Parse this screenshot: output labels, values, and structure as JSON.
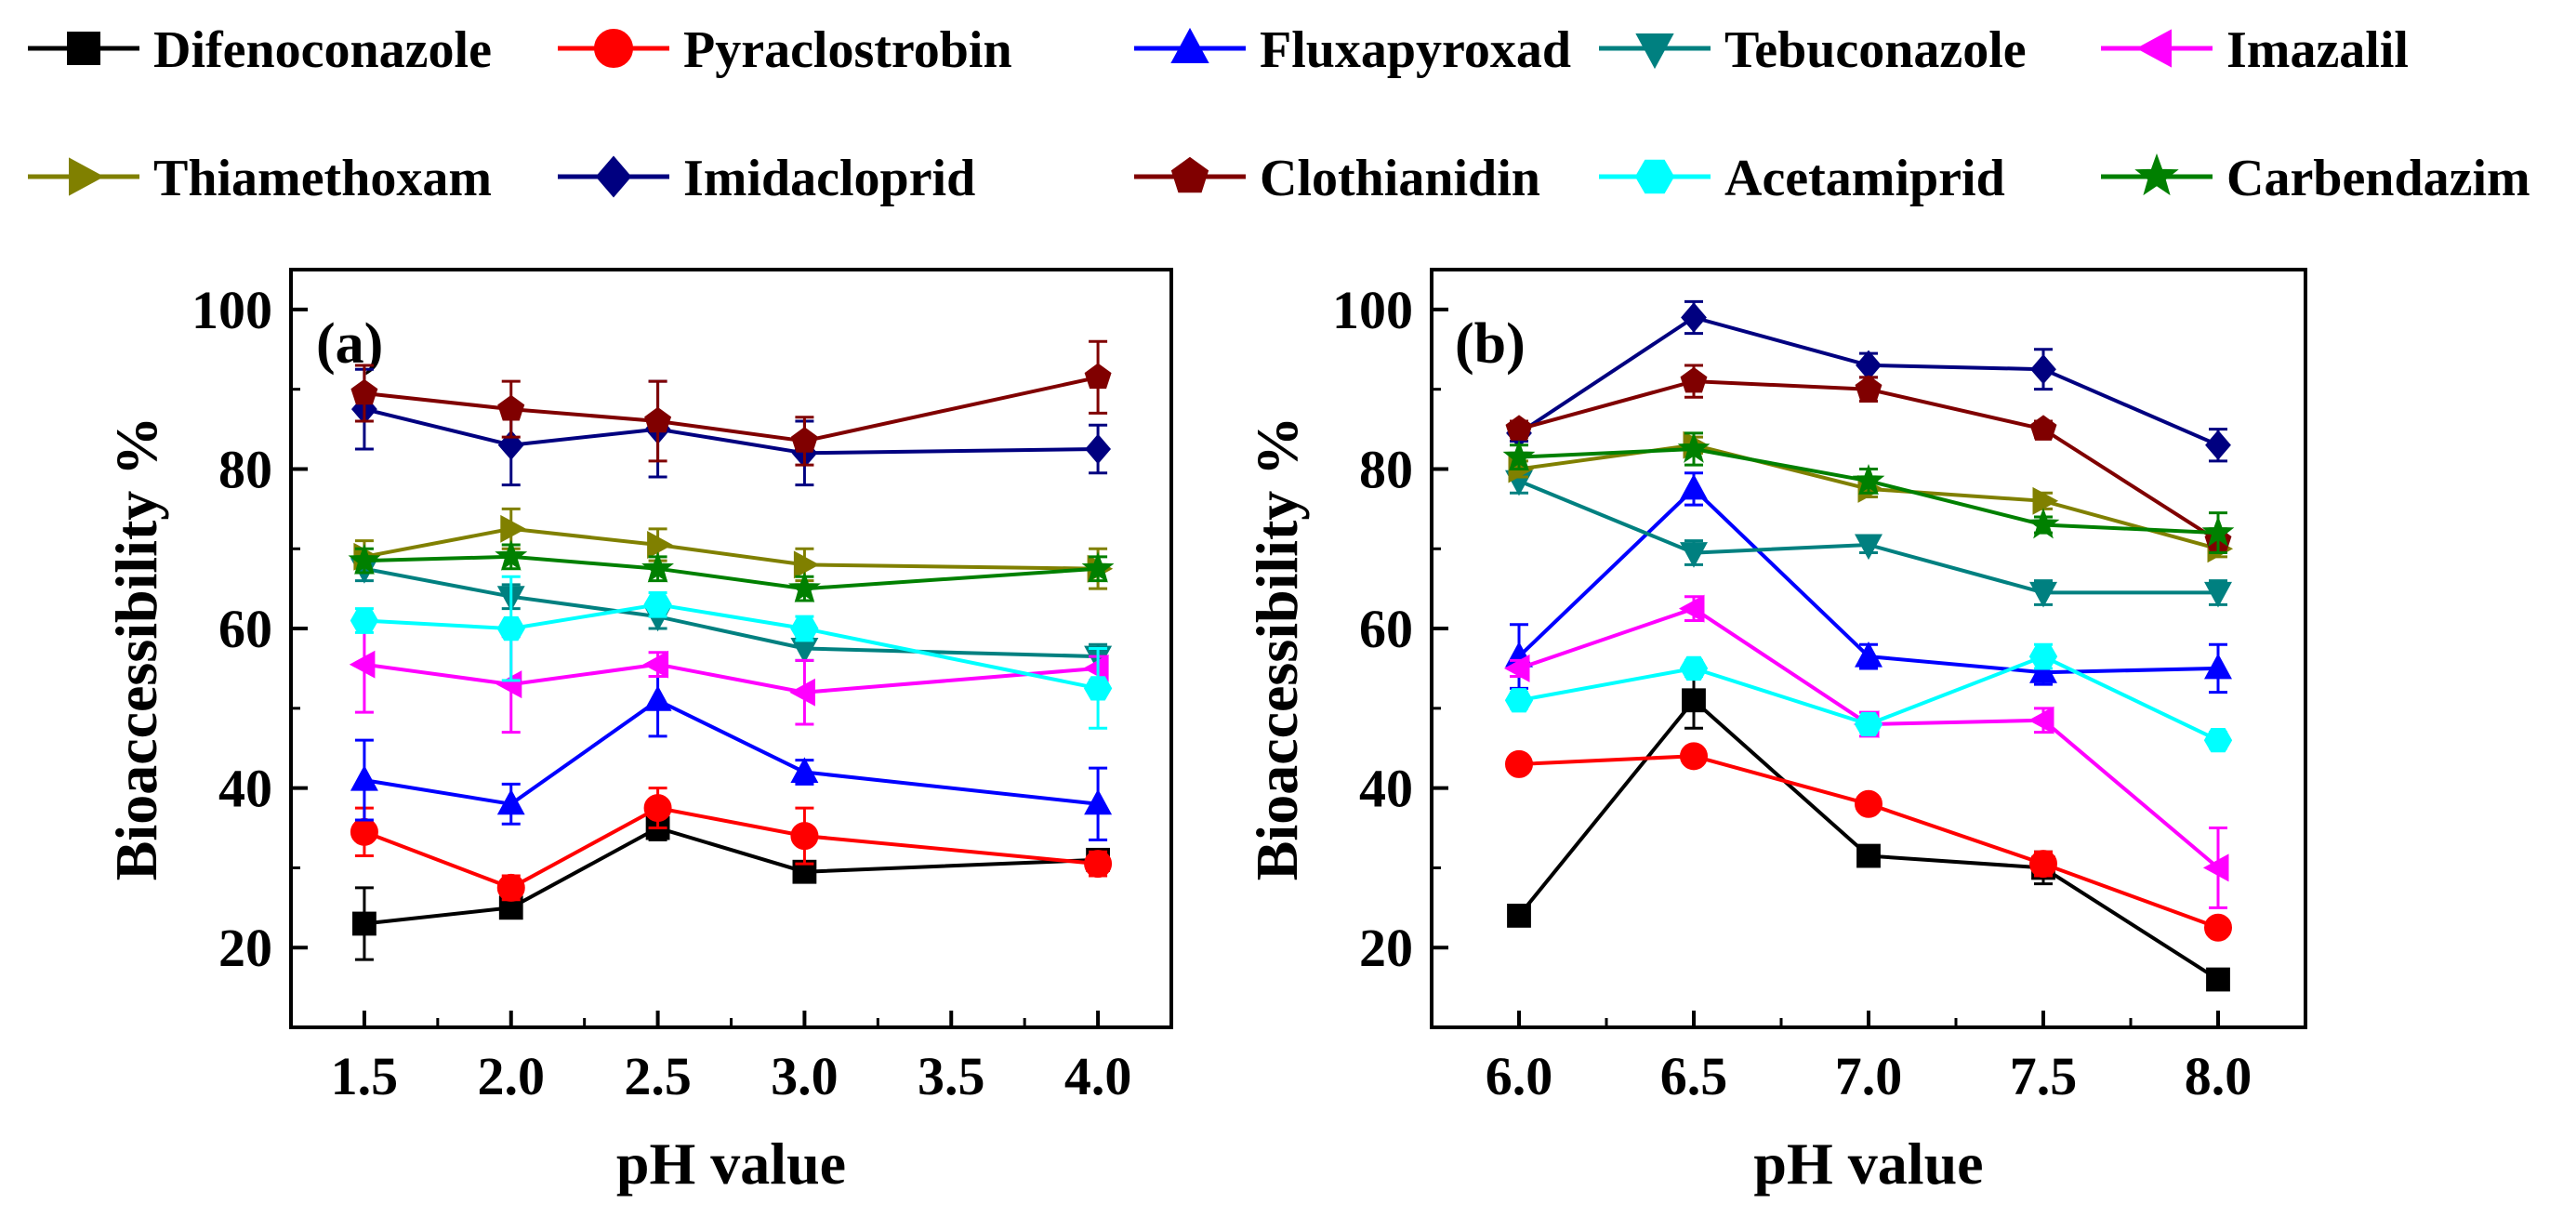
{
  "chart_data": [
    {
      "type": "line",
      "panel_label": "(a)",
      "title": "",
      "xlabel": "pH value",
      "ylabel": "Bioaccessibility %",
      "xlim": [
        1.25,
        4.25
      ],
      "ylim": [
        10,
        105
      ],
      "xticks": [
        "1.5",
        "2.0",
        "2.5",
        "3.0",
        "3.5",
        "4.0"
      ],
      "yticks": [
        "20",
        "40",
        "60",
        "80",
        "100"
      ],
      "x": [
        1.5,
        2.0,
        2.5,
        3.0,
        4.0
      ],
      "series": [
        {
          "name": "Difenoconazole",
          "values": [
            23,
            25,
            35,
            29.5,
            31
          ],
          "errors": [
            4.5,
            1,
            1.5,
            1,
            1
          ]
        },
        {
          "name": "Pyraclostrobin",
          "values": [
            34.5,
            27.5,
            37.5,
            34,
            30.5
          ],
          "errors": [
            3,
            1.5,
            2.5,
            3.5,
            1.5
          ]
        },
        {
          "name": "Fluxapyroxad",
          "values": [
            41,
            38,
            51,
            42,
            38
          ],
          "errors": [
            5,
            2.5,
            4.5,
            1.5,
            4.5
          ]
        },
        {
          "name": "Tebuconazole",
          "values": [
            67.5,
            64,
            61.5,
            57.5,
            56.5
          ],
          "errors": [
            1.5,
            1.5,
            1.5,
            1.5,
            1.5
          ]
        },
        {
          "name": "Imazalil",
          "values": [
            55.5,
            53,
            55.5,
            52,
            55
          ],
          "errors": [
            6,
            6,
            1.5,
            4,
            1.5
          ]
        },
        {
          "name": "Thiamethoxam",
          "values": [
            69,
            72.5,
            70.5,
            68,
            67.5
          ],
          "errors": [
            2,
            2.5,
            2,
            2,
            2.5
          ]
        },
        {
          "name": "Imidacloprid",
          "values": [
            87.5,
            83,
            85,
            82,
            82.5
          ],
          "errors": [
            5,
            5,
            6,
            4,
            3
          ]
        },
        {
          "name": "Clothianidin",
          "values": [
            89.5,
            87.5,
            86,
            83.5,
            91.5
          ],
          "errors": [
            3.5,
            3.5,
            5,
            3,
            4.5
          ]
        },
        {
          "name": "Acetamiprid",
          "values": [
            61,
            60,
            63,
            60,
            52.5
          ],
          "errors": [
            1.5,
            6.5,
            1.5,
            1.5,
            5
          ]
        },
        {
          "name": "Carbendazim",
          "values": [
            68.5,
            69,
            67.5,
            65,
            67.5
          ],
          "errors": [
            1.5,
            1.5,
            1.5,
            1.5,
            1.5
          ]
        }
      ]
    },
    {
      "type": "line",
      "panel_label": "(b)",
      "title": "",
      "xlabel": "pH value",
      "ylabel": "Bioaccessibility %",
      "xlim": [
        5.75,
        8.25
      ],
      "ylim": [
        10,
        105
      ],
      "xticks": [
        "6.0",
        "6.5",
        "7.0",
        "7.5",
        "8.0"
      ],
      "yticks": [
        "20",
        "40",
        "60",
        "80",
        "100"
      ],
      "x": [
        6.0,
        6.5,
        7.0,
        7.5,
        8.0
      ],
      "series": [
        {
          "name": "Difenoconazole",
          "values": [
            24,
            51,
            31.5,
            30,
            16
          ],
          "errors": [
            1,
            3.5,
            1,
            2,
            1
          ]
        },
        {
          "name": "Pyraclostrobin",
          "values": [
            43,
            44,
            38,
            30.5,
            22.5
          ],
          "errors": [
            1,
            1,
            1,
            1.5,
            1
          ]
        },
        {
          "name": "Fluxapyroxad",
          "values": [
            56.5,
            77.5,
            56.5,
            54.5,
            55
          ],
          "errors": [
            4,
            2,
            1.5,
            1.5,
            3
          ]
        },
        {
          "name": "Tebuconazole",
          "values": [
            78.5,
            69.5,
            70.5,
            64.5,
            64.5
          ],
          "errors": [
            1.5,
            1.5,
            1,
            1.5,
            1.5
          ]
        },
        {
          "name": "Imazalil",
          "values": [
            55,
            62.5,
            48,
            48.5,
            30
          ],
          "errors": [
            1,
            1.5,
            1.5,
            1.5,
            5
          ]
        },
        {
          "name": "Thiamethoxam",
          "values": [
            80,
            83,
            77.5,
            76,
            70
          ],
          "errors": [
            1,
            1,
            1,
            1,
            1
          ]
        },
        {
          "name": "Imidacloprid",
          "values": [
            84.5,
            99,
            93,
            92.5,
            83
          ],
          "errors": [
            1,
            2,
            1.5,
            2.5,
            2
          ]
        },
        {
          "name": "Clothianidin",
          "values": [
            85,
            91,
            90,
            85,
            71
          ],
          "errors": [
            1,
            2,
            1.5,
            1,
            1.5
          ]
        },
        {
          "name": "Acetamiprid",
          "values": [
            51,
            55,
            48,
            56.5,
            46
          ],
          "errors": [
            1,
            1,
            1,
            1.5,
            1
          ]
        },
        {
          "name": "Carbendazim",
          "values": [
            81.5,
            82.5,
            78.5,
            73,
            72
          ],
          "errors": [
            1.5,
            2,
            1.5,
            1,
            2.5
          ]
        }
      ]
    }
  ],
  "legend": [
    {
      "name": "Difenoconazole",
      "color": "#000000",
      "marker": "square"
    },
    {
      "name": "Pyraclostrobin",
      "color": "#ff0000",
      "marker": "circle"
    },
    {
      "name": "Fluxapyroxad",
      "color": "#0000ff",
      "marker": "triangle-up"
    },
    {
      "name": "Tebuconazole",
      "color": "#008080",
      "marker": "triangle-down"
    },
    {
      "name": "Imazalil",
      "color": "#ff00ff",
      "marker": "triangle-left"
    },
    {
      "name": "Thiamethoxam",
      "color": "#808000",
      "marker": "triangle-right"
    },
    {
      "name": "Imidacloprid",
      "color": "#000080",
      "marker": "diamond"
    },
    {
      "name": "Clothianidin",
      "color": "#800000",
      "marker": "pentagon"
    },
    {
      "name": "Acetamiprid",
      "color": "#00ffff",
      "marker": "hexagon"
    },
    {
      "name": "Carbendazim",
      "color": "#008000",
      "marker": "star"
    }
  ]
}
